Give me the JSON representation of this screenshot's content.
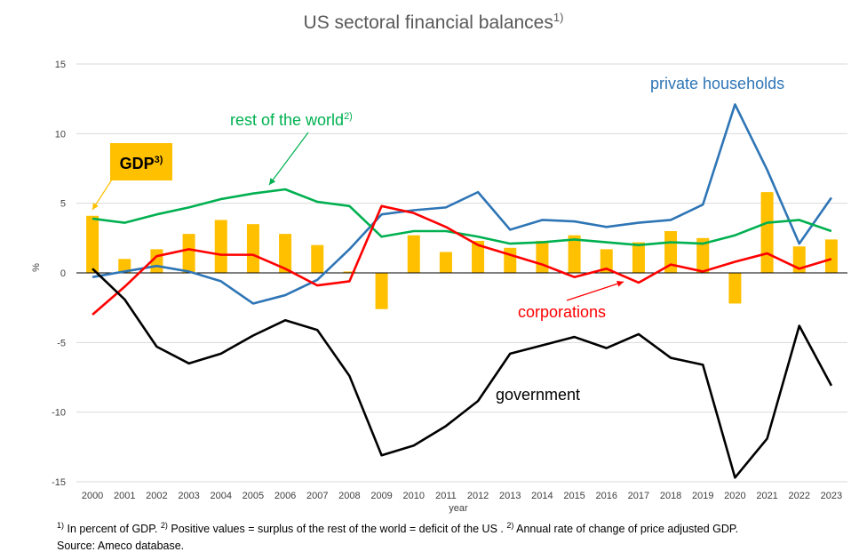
{
  "chart_data": {
    "type": "bar+line",
    "title": "US sectoral financial balances",
    "title_sup": "1)",
    "xlabel": "year",
    "ylabel": "%",
    "ylim": [
      -15,
      15
    ],
    "yticks": [
      15,
      10,
      5,
      0,
      -5,
      -10,
      -15
    ],
    "grid": true,
    "categories": [
      "2000",
      "2001",
      "2002",
      "2003",
      "2004",
      "2005",
      "2006",
      "2007",
      "2008",
      "2009",
      "2010",
      "2011",
      "2012",
      "2013",
      "2014",
      "2015",
      "2016",
      "2017",
      "2018",
      "2019",
      "2020",
      "2021",
      "2022",
      "2023"
    ],
    "bars": {
      "name": "GDP",
      "label_sup": "3)",
      "color": "#FFC000",
      "values": [
        4.1,
        1.0,
        1.7,
        2.8,
        3.8,
        3.5,
        2.8,
        2.0,
        0.1,
        -2.6,
        2.7,
        1.5,
        2.3,
        1.8,
        2.3,
        2.7,
        1.7,
        2.2,
        3.0,
        2.5,
        -2.2,
        5.8,
        1.9,
        2.4
      ]
    },
    "series": [
      {
        "name": "private households",
        "label_sup": "",
        "color": "#2E75B6",
        "values": [
          -0.3,
          0.1,
          0.5,
          0.1,
          -0.6,
          -2.2,
          -1.6,
          -0.5,
          1.7,
          4.2,
          4.5,
          4.7,
          5.8,
          3.1,
          3.8,
          3.7,
          3.3,
          3.6,
          3.8,
          4.9,
          12.1,
          7.4,
          2.1,
          5.4
        ]
      },
      {
        "name": "rest of the world",
        "label_sup": "2)",
        "color": "#00B050",
        "values": [
          3.9,
          3.6,
          4.2,
          4.7,
          5.3,
          5.7,
          6.0,
          5.1,
          4.8,
          2.6,
          3.0,
          3.0,
          2.6,
          2.1,
          2.2,
          2.4,
          2.2,
          2.0,
          2.2,
          2.1,
          2.7,
          3.6,
          3.8,
          3.0
        ]
      },
      {
        "name": "corporations",
        "label_sup": "",
        "color": "#FF0000",
        "values": [
          -3.0,
          -1.0,
          1.2,
          1.7,
          1.3,
          1.3,
          0.3,
          -0.9,
          -0.6,
          4.8,
          4.3,
          3.3,
          2.0,
          1.3,
          0.6,
          -0.3,
          0.3,
          -0.7,
          0.6,
          0.1,
          0.8,
          1.4,
          0.3,
          1.0
        ]
      },
      {
        "name": "government",
        "label_sup": "",
        "color": "#000000",
        "values": [
          0.3,
          -1.9,
          -5.3,
          -6.5,
          -5.8,
          -4.5,
          -3.4,
          -4.1,
          -7.4,
          -13.1,
          -12.4,
          -11.0,
          -9.2,
          -5.8,
          -5.2,
          -4.6,
          -5.4,
          -4.4,
          -6.1,
          -6.6,
          -14.7,
          -11.9,
          -3.8,
          -8.1
        ]
      }
    ],
    "annotations": {
      "gdp_label": "GDP",
      "gdp_label_sup": "3)",
      "gdp_box_color": "#FFC000",
      "households_label": "private households",
      "rest_label": "rest of the world",
      "rest_label_sup": "2)",
      "corp_label": "corporations",
      "gov_label": "government"
    }
  },
  "footnote": {
    "sup1": "1)",
    "text1": " In percent of GDP. ",
    "sup2": "2)",
    "text2": " Positive values = surplus of the rest of the world = deficit of the US . ",
    "sup3": "2)",
    "text3": " Annual rate of change of price adjusted GDP.",
    "line2": "Source: Ameco database."
  }
}
